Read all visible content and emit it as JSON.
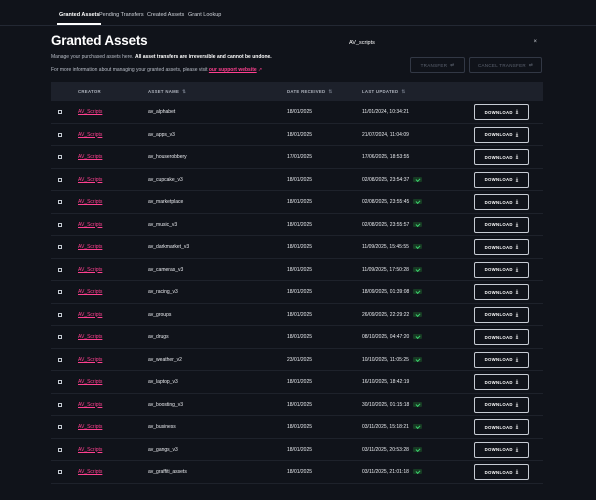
{
  "nav": {
    "tabs": [
      {
        "label": "Granted Assets",
        "active": true
      },
      {
        "label": "Pending Transfers",
        "active": false
      },
      {
        "label": "Created Assets",
        "active": false
      },
      {
        "label": "Grant Lookup",
        "active": false
      }
    ]
  },
  "page": {
    "title": "Granted Assets",
    "desc_prefix": "Manage your purchased assets here.",
    "desc_bold": "All asset transfers are irreversible and cannot be undone.",
    "info_prefix": "For more information about managing your granted assets, please visit",
    "info_link": "our support website"
  },
  "search": {
    "value": "AV_scripts",
    "clear": "×"
  },
  "actions": {
    "transfer": "TRANSFER",
    "cancel_transfer": "CANCEL TRANSFER"
  },
  "columns": {
    "creator": "CREATOR",
    "asset_name": "ASSET NAME",
    "date_received": "DATE RECEIVED",
    "last_updated": "LAST UPDATED"
  },
  "download_label": "DOWNLOAD",
  "rows": [
    {
      "creator": "AV_Scripts",
      "asset": "av_alphabet",
      "received": "18/01/2025",
      "updated": "11/01/2024, 10:34:21",
      "badge": false
    },
    {
      "creator": "AV_Scripts",
      "asset": "av_apps_v3",
      "received": "18/01/2025",
      "updated": "21/07/2024, 11:04:09",
      "badge": false
    },
    {
      "creator": "AV_Scripts",
      "asset": "av_houserobbery",
      "received": "17/01/2025",
      "updated": "17/06/2025, 18:53:55",
      "badge": false
    },
    {
      "creator": "AV_Scripts",
      "asset": "av_cupcake_v3",
      "received": "18/01/2025",
      "updated": "02/08/2025, 23:54:37",
      "badge": true
    },
    {
      "creator": "AV_Scripts",
      "asset": "av_marketplace",
      "received": "18/01/2025",
      "updated": "02/08/2025, 23:55:45",
      "badge": true
    },
    {
      "creator": "AV_Scripts",
      "asset": "av_music_v3",
      "received": "18/01/2025",
      "updated": "02/08/2025, 23:55:57",
      "badge": true
    },
    {
      "creator": "AV_Scripts",
      "asset": "av_darkmarket_v3",
      "received": "18/01/2025",
      "updated": "11/09/2025, 15:45:55",
      "badge": true
    },
    {
      "creator": "AV_Scripts",
      "asset": "av_cameras_v3",
      "received": "18/01/2025",
      "updated": "11/09/2025, 17:50:28",
      "badge": true
    },
    {
      "creator": "AV_Scripts",
      "asset": "av_racing_v3",
      "received": "18/01/2025",
      "updated": "18/09/2025, 01:39:08",
      "badge": true
    },
    {
      "creator": "AV_Scripts",
      "asset": "av_groups",
      "received": "18/01/2025",
      "updated": "26/09/2025, 22:29:22",
      "badge": true
    },
    {
      "creator": "AV_Scripts",
      "asset": "av_drugs",
      "received": "18/01/2025",
      "updated": "08/10/2025, 04:47:20",
      "badge": true
    },
    {
      "creator": "AV_Scripts",
      "asset": "av_weather_v2",
      "received": "23/01/2025",
      "updated": "10/10/2025, 11:05:25",
      "badge": true
    },
    {
      "creator": "AV_Scripts",
      "asset": "av_laptop_v3",
      "received": "18/01/2025",
      "updated": "16/10/2025, 18:42:19",
      "badge": false
    },
    {
      "creator": "AV_Scripts",
      "asset": "av_boosting_v3",
      "received": "18/01/2025",
      "updated": "30/10/2025, 01:15:18",
      "badge": true
    },
    {
      "creator": "AV_Scripts",
      "asset": "av_business",
      "received": "18/01/2025",
      "updated": "03/11/2025, 15:18:21",
      "badge": true
    },
    {
      "creator": "AV_Scripts",
      "asset": "av_gangs_v3",
      "received": "18/01/2025",
      "updated": "03/11/2025, 20:53:28",
      "badge": true
    },
    {
      "creator": "AV_Scripts",
      "asset": "av_graffiti_assets",
      "received": "18/01/2025",
      "updated": "03/11/2025, 21:01:18",
      "badge": true
    }
  ]
}
